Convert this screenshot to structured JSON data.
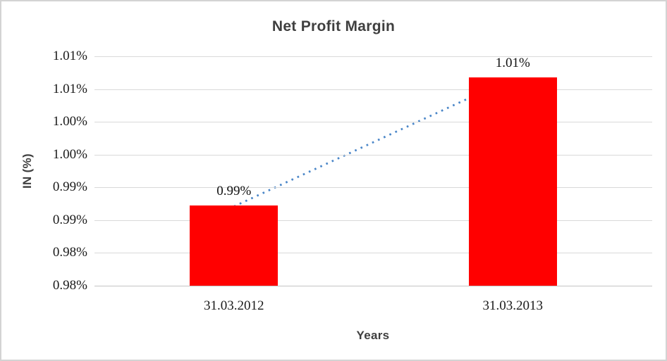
{
  "chart_data": {
    "type": "bar",
    "title": "Net Profit Margin",
    "xlabel": "Years",
    "ylabel": "IN (%)",
    "categories": [
      "31.03.2012",
      "31.03.2013"
    ],
    "series": [
      {
        "name": "Net Profit Margin",
        "color": "#ff0000",
        "values": [
          0.9922,
          1.0118
        ]
      }
    ],
    "data_labels": [
      "0.99%",
      "1.01%"
    ],
    "ylim": [
      0.98,
      1.015
    ],
    "yticks": [
      0.98,
      0.985,
      0.99,
      0.995,
      1.0,
      1.005,
      1.01,
      1.015
    ],
    "ytick_labels": [
      "0.98%",
      "0.98%",
      "0.99%",
      "0.99%",
      "1.00%",
      "1.00%",
      "1.01%",
      "1.01%"
    ],
    "grid": true,
    "legend": "none",
    "trendline": {
      "type": "linear",
      "style": "dotted",
      "color": "#4a86c8"
    },
    "colors": {
      "bar": "#ff0000",
      "gridline": "#d9d9d9",
      "axis_line": "#c4c4c4",
      "title_text": "#3f3f3f",
      "tick_text": "#1a1a1a",
      "background": "#ffffff",
      "frame_border": "#d3d3d3"
    }
  }
}
